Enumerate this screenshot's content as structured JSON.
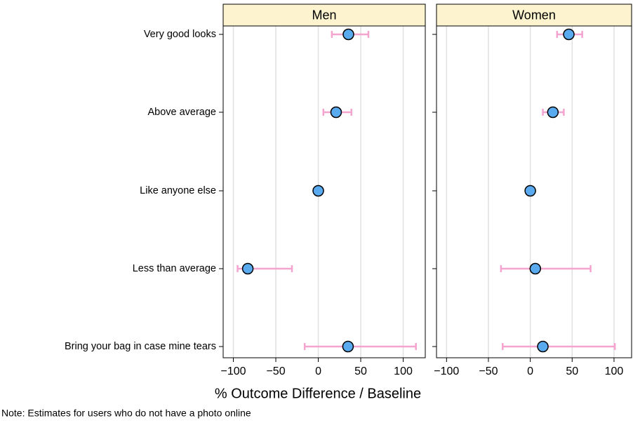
{
  "chart_data": [
    {
      "type": "dot",
      "title": "Men",
      "categories": [
        "Very good looks",
        "Above average",
        "Like anyone else",
        "Less than average",
        "Bring your bag in case mine tears"
      ],
      "values": [
        35.5,
        21,
        0,
        -83,
        35
      ],
      "lower": [
        16,
        6,
        null,
        -95,
        -16
      ],
      "upper": [
        59,
        39,
        null,
        -31,
        115
      ],
      "color": "#5aaaf0",
      "error_color": "#f5a3cf",
      "xlim": [
        -112,
        126
      ],
      "xticks": [
        {
          "value": -100,
          "label": "−100"
        },
        {
          "value": -50,
          "label": "−50"
        },
        0,
        50,
        100
      ],
      "grid": true
    },
    {
      "type": "dot",
      "title": "Women",
      "values": [
        46,
        27,
        0,
        6,
        15
      ],
      "lower": [
        32,
        15,
        null,
        -35,
        -33
      ],
      "upper": [
        62,
        40,
        null,
        72,
        101
      ],
      "color": "#5aaaf0",
      "error_color": "#f5a3cf",
      "xlim": [
        -112,
        121
      ],
      "xticks": [
        {
          "value": -100,
          "label": "−100"
        },
        {
          "value": -50,
          "label": "−50"
        },
        0,
        50,
        100
      ],
      "grid": true
    }
  ],
  "xlabel": "% Outcome Difference / Baseline",
  "note": "Note: Estimates for users who do not have a photo online"
}
